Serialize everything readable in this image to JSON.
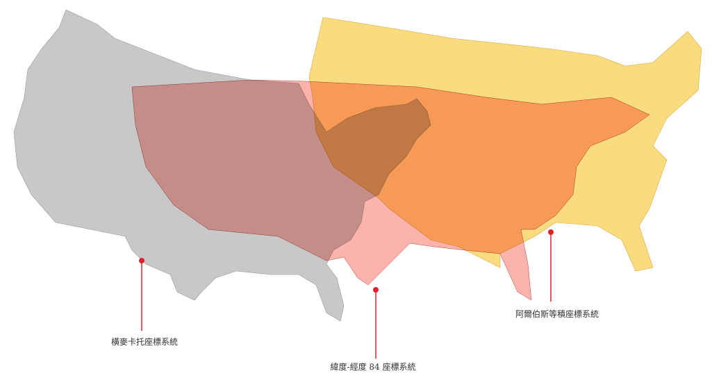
{
  "layers": [
    {
      "id": "mercator",
      "label": "橫麥卡托座標系統",
      "color": "#c8c8c8"
    },
    {
      "id": "wgs84",
      "label": "緯度-經度 84 座標系統",
      "color": "#f8776a"
    },
    {
      "id": "albers",
      "label": "阿爾伯斯等積座標系統",
      "color": "#f9dc80"
    }
  ],
  "marker_color": "#e0202a"
}
